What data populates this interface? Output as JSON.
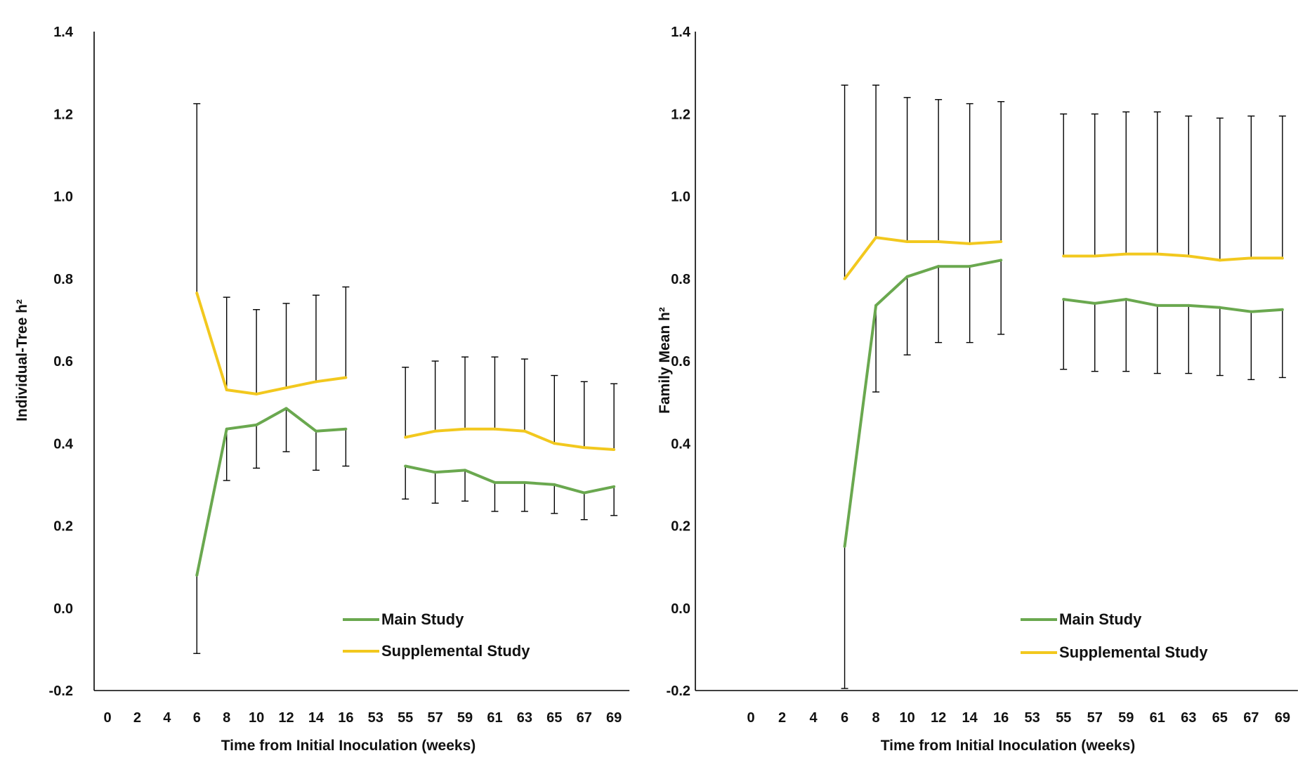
{
  "chart_data": [
    {
      "type": "line",
      "title": "",
      "xlabel": "Time from Initial Inoculation  (weeks)",
      "ylabel": "Individual-Tree h²",
      "ylim": [
        -0.2,
        1.4
      ],
      "yticks": [
        "-0.2",
        "0.0",
        "0.2",
        "0.4",
        "0.6",
        "0.8",
        "1.0",
        "1.2",
        "1.4"
      ],
      "ytick_values": [
        -0.2,
        0.0,
        0.2,
        0.4,
        0.6,
        0.8,
        1.0,
        1.2,
        1.4
      ],
      "categories": [
        "0",
        "2",
        "4",
        "6",
        "8",
        "10",
        "12",
        "14",
        "16",
        "53",
        "55",
        "57",
        "59",
        "61",
        "63",
        "65",
        "67",
        "69"
      ],
      "legend_position": "bottom-right",
      "series": [
        {
          "name": "Main Study",
          "color": "#6aa84f",
          "error_direction": "down",
          "values": [
            null,
            null,
            null,
            0.08,
            0.435,
            0.445,
            0.485,
            0.43,
            0.435,
            null,
            0.345,
            0.33,
            0.335,
            0.305,
            0.305,
            0.3,
            0.28,
            0.295
          ],
          "error_ends": [
            null,
            null,
            null,
            -0.11,
            0.31,
            0.34,
            0.38,
            0.335,
            0.345,
            null,
            0.265,
            0.255,
            0.26,
            0.235,
            0.235,
            0.23,
            0.215,
            0.225
          ]
        },
        {
          "name": "Supplemental Study",
          "color": "#f2c81e",
          "error_direction": "up",
          "values": [
            null,
            null,
            null,
            0.765,
            0.53,
            0.52,
            0.535,
            0.55,
            0.56,
            null,
            0.415,
            0.43,
            0.435,
            0.435,
            0.43,
            0.4,
            0.39,
            0.385
          ],
          "error_ends": [
            null,
            null,
            null,
            1.225,
            0.755,
            0.725,
            0.74,
            0.76,
            0.78,
            null,
            0.585,
            0.6,
            0.61,
            0.61,
            0.605,
            0.565,
            0.55,
            0.545
          ]
        }
      ]
    },
    {
      "type": "line",
      "title": "",
      "xlabel": "Time from Initial Inoculation  (weeks)",
      "ylabel": "Family Mean h²",
      "ylim": [
        -0.2,
        1.4
      ],
      "yticks": [
        "-0.2",
        "0.0",
        "0.2",
        "0.4",
        "0.6",
        "0.8",
        "1.0",
        "1.2",
        "1.4"
      ],
      "ytick_values": [
        -0.2,
        0.0,
        0.2,
        0.4,
        0.6,
        0.8,
        1.0,
        1.2,
        1.4
      ],
      "categories": [
        "0",
        "2",
        "4",
        "6",
        "8",
        "10",
        "12",
        "14",
        "16",
        "53",
        "55",
        "57",
        "59",
        "61",
        "63",
        "65",
        "67",
        "69"
      ],
      "legend_position": "bottom-right",
      "series": [
        {
          "name": "Main Study",
          "color": "#6aa84f",
          "error_direction": "down",
          "values": [
            null,
            null,
            null,
            0.15,
            0.735,
            0.805,
            0.83,
            0.83,
            0.845,
            null,
            0.75,
            0.74,
            0.75,
            0.735,
            0.735,
            0.73,
            0.72,
            0.725
          ],
          "error_ends": [
            null,
            null,
            null,
            -0.195,
            0.525,
            0.615,
            0.645,
            0.645,
            0.665,
            null,
            0.58,
            0.575,
            0.575,
            0.57,
            0.57,
            0.565,
            0.555,
            0.56
          ]
        },
        {
          "name": "Supplemental Study",
          "color": "#f2c81e",
          "error_direction": "up",
          "values": [
            null,
            null,
            null,
            0.8,
            0.9,
            0.89,
            0.89,
            0.885,
            0.89,
            null,
            0.855,
            0.855,
            0.86,
            0.86,
            0.855,
            0.845,
            0.85,
            0.85
          ],
          "error_ends": [
            null,
            null,
            null,
            1.27,
            1.27,
            1.24,
            1.235,
            1.225,
            1.23,
            null,
            1.2,
            1.2,
            1.205,
            1.205,
            1.195,
            1.19,
            1.195,
            1.195
          ]
        }
      ]
    }
  ]
}
